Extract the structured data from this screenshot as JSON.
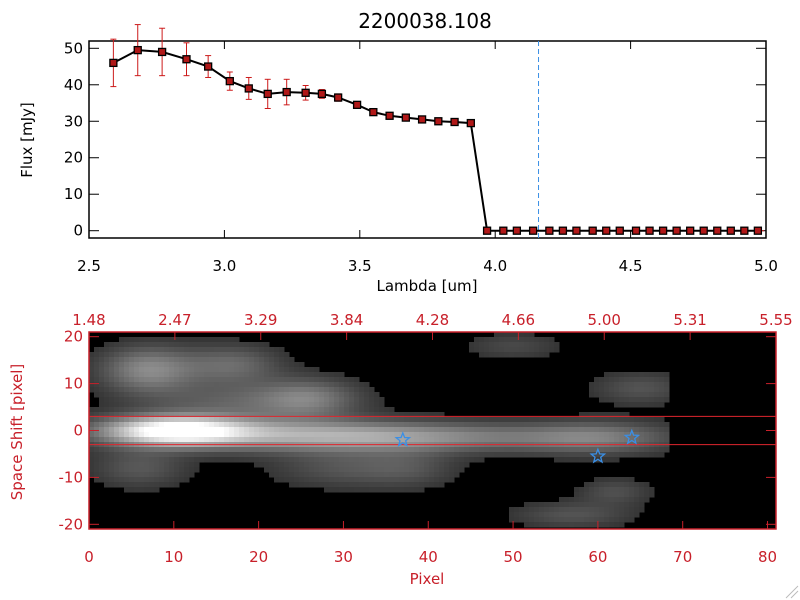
{
  "colors": {
    "axis_top": "#000000",
    "axis_bottom": "#c8202a",
    "marker_fill": "#b01818",
    "error_bar": "#cc1a1a",
    "dashed_line": "#3a8fe6",
    "star": "#3a8fe6",
    "aperture_line": "#e0262e",
    "image_bg": "#000000"
  },
  "chart_data": [
    {
      "type": "line",
      "title": "2200038.108",
      "xlabel": "Lambda [um]",
      "ylabel": "Flux [mJy]",
      "xlim": [
        2.5,
        5.0
      ],
      "ylim": [
        -2,
        52
      ],
      "xticks": [
        "2.5",
        "3.0",
        "3.5",
        "4.0",
        "4.5",
        "5.0"
      ],
      "xtick_values": [
        2.5,
        3.0,
        3.5,
        4.0,
        4.5,
        5.0
      ],
      "yticks": [
        "0",
        "10",
        "20",
        "30",
        "40",
        "50"
      ],
      "ytick_values": [
        0,
        10,
        20,
        30,
        40,
        50
      ],
      "grid": false,
      "vline_x": 4.16,
      "series": [
        {
          "x": [
            2.59,
            2.68,
            2.77,
            2.86,
            2.94,
            3.02,
            3.09,
            3.16,
            3.23,
            3.3,
            3.36,
            3.42,
            3.49,
            3.55,
            3.61,
            3.67,
            3.73,
            3.79,
            3.85,
            3.91,
            3.97,
            4.03,
            4.08,
            4.14,
            4.2,
            4.25,
            4.3,
            4.36,
            4.41,
            4.46,
            4.52,
            4.57,
            4.62,
            4.67,
            4.72,
            4.77,
            4.82,
            4.87,
            4.92,
            4.97
          ],
          "y": [
            46,
            49.5,
            49,
            47,
            45,
            41,
            39,
            37.5,
            38,
            37.8,
            37.5,
            36.5,
            34.5,
            32.5,
            31.5,
            31,
            30.5,
            30,
            29.8,
            29.5,
            0,
            0,
            0,
            0,
            0,
            0,
            0,
            0,
            0,
            0,
            0,
            0,
            0,
            0,
            0,
            0,
            0,
            0,
            0,
            0
          ],
          "yerr": [
            6.5,
            7,
            6.5,
            4.5,
            3,
            2.5,
            3,
            4,
            3.5,
            2,
            1.2,
            1,
            0.8,
            0.6,
            0.5,
            0.5,
            0.5,
            0.5,
            0.5,
            0.5,
            0,
            0,
            0,
            0,
            0,
            0,
            0,
            0,
            0,
            0,
            0,
            0,
            0,
            0,
            0,
            0,
            0,
            0,
            0,
            0
          ]
        }
      ]
    },
    {
      "type": "heatmap",
      "xlabel": "Pixel",
      "ylabel": "Space Shift [pixel]",
      "xlim": [
        0,
        81
      ],
      "ylim": [
        -21,
        21
      ],
      "xticks": [
        "0",
        "10",
        "20",
        "30",
        "40",
        "50",
        "60",
        "70",
        "80"
      ],
      "xtick_values": [
        0,
        10,
        20,
        30,
        40,
        50,
        60,
        70,
        80
      ],
      "yticks": [
        "-20",
        "-10",
        "0",
        "10",
        "20"
      ],
      "ytick_values": [
        -20,
        -10,
        0,
        10,
        20
      ],
      "top_axis_labels": [
        "1.48",
        "2.47",
        "3.29",
        "3.84",
        "4.28",
        "4.66",
        "5.00",
        "5.31",
        "5.55"
      ],
      "aperture_lines_y": [
        3,
        -3
      ],
      "stars": [
        {
          "x": 37,
          "y": -2
        },
        {
          "x": 60,
          "y": -5.5
        },
        {
          "x": 64,
          "y": -1.5
        }
      ],
      "image_extent_x": [
        0,
        68
      ],
      "sources": [
        {
          "x": 10,
          "y": 0,
          "sx": 6,
          "sy": 2.2,
          "a": 1.0
        },
        {
          "x": 25,
          "y": -1,
          "sx": 12,
          "sy": 2.4,
          "a": 0.45
        },
        {
          "x": 42,
          "y": -1.5,
          "sx": 14,
          "sy": 2.2,
          "a": 0.32
        },
        {
          "x": 60,
          "y": -1.5,
          "sx": 6,
          "sy": 2.5,
          "a": 0.3
        },
        {
          "x": 7,
          "y": 13,
          "sx": 4,
          "sy": 3.5,
          "a": 0.45
        },
        {
          "x": 17,
          "y": 14,
          "sx": 4,
          "sy": 3,
          "a": 0.3
        },
        {
          "x": 18,
          "y": 6,
          "sx": 8,
          "sy": 3,
          "a": 0.25
        },
        {
          "x": 26,
          "y": 7,
          "sx": 4,
          "sy": 3,
          "a": 0.3
        },
        {
          "x": 6,
          "y": -8,
          "sx": 4,
          "sy": 3,
          "a": 0.22
        },
        {
          "x": 30,
          "y": -8,
          "sx": 6,
          "sy": 3,
          "a": 0.2
        },
        {
          "x": 65,
          "y": 9,
          "sx": 4,
          "sy": 2.5,
          "a": 0.2
        },
        {
          "x": 62,
          "y": -13,
          "sx": 3,
          "sy": 2,
          "a": 0.18
        },
        {
          "x": 57,
          "y": -18,
          "sx": 5,
          "sy": 2,
          "a": 0.2
        },
        {
          "x": 50,
          "y": 18,
          "sx": 4,
          "sy": 2,
          "a": 0.15
        },
        {
          "x": 38,
          "y": -8,
          "sx": 4,
          "sy": 3,
          "a": 0.15
        }
      ]
    }
  ]
}
